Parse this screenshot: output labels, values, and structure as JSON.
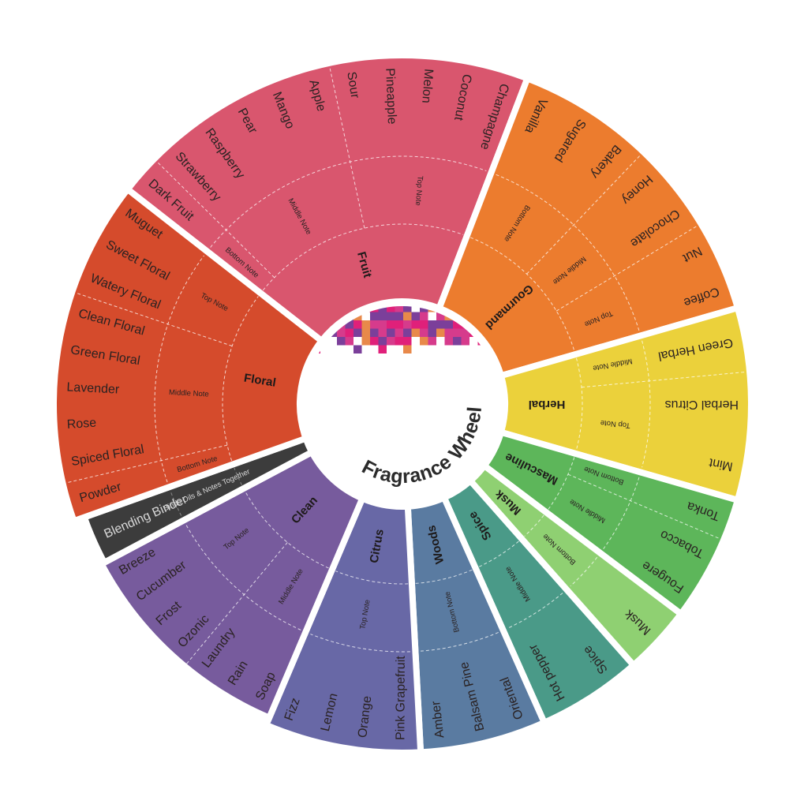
{
  "title": "Fragrance Wheel",
  "logo_colors": [
    "#e0207a",
    "#7b3f9a",
    "#e8894a",
    "#d63b8c"
  ],
  "categories": [
    {
      "name": "Fruit",
      "color": "#d9566e",
      "start": 308,
      "end": 381,
      "notes": [
        {
          "label": "Bottom Note",
          "items": [
            "Dark Fruit"
          ]
        },
        {
          "label": "Middle Note",
          "items": [
            "Strawberry",
            "Raspberry",
            "Pear",
            "Mango",
            "Apple"
          ]
        },
        {
          "label": "Top Note",
          "items": [
            "Sour",
            "Pineapple",
            "Melon",
            "Coconut",
            "Champagne"
          ]
        }
      ]
    },
    {
      "name": "Gourmand",
      "color": "#ec7c2e",
      "start": 21,
      "end": 74,
      "notes": [
        {
          "label": "Bottom Note",
          "items": [
            "Vanilla",
            "Sugared",
            "Bakery"
          ]
        },
        {
          "label": "Middle Note",
          "items": [
            "Honey",
            "Chocolate"
          ]
        },
        {
          "label": "Top Note",
          "items": [
            "Nut",
            "Coffee"
          ]
        }
      ]
    },
    {
      "name": "Herbal",
      "color": "#ebd13b",
      "start": 74,
      "end": 106,
      "notes": [
        {
          "label": "Middle Note",
          "items": [
            "Green Herbal"
          ]
        },
        {
          "label": "Top Note",
          "items": [
            "Herbal Citrus",
            "Mint"
          ]
        }
      ]
    },
    {
      "name": "Masculine",
      "color": "#5db65a",
      "start": 106,
      "end": 127,
      "notes": [
        {
          "label": "Bottom Note",
          "items": [
            "Tonka"
          ]
        },
        {
          "label": "Middle Note",
          "items": [
            "Tobacco",
            "Fougere"
          ]
        }
      ]
    },
    {
      "name": "Musk",
      "color": "#8fd072",
      "start": 127,
      "end": 138.5,
      "notes": [
        {
          "label": "Bottom Note",
          "items": [
            "Musk"
          ]
        }
      ]
    },
    {
      "name": "Spice",
      "color": "#4a9a88",
      "start": 138.5,
      "end": 156,
      "notes": [
        {
          "label": "Middle Note",
          "items": [
            "Spice",
            "Hot pepper"
          ]
        }
      ]
    },
    {
      "name": "Woods",
      "color": "#5a7ba1",
      "start": 156,
      "end": 177,
      "notes": [
        {
          "label": "Bottom Note",
          "items": [
            "Oriental",
            "Balsam Pine",
            "Amber"
          ]
        }
      ]
    },
    {
      "name": "Citrus",
      "color": "#6868a6",
      "start": 177,
      "end": 203,
      "notes": [
        {
          "label": "Top Note",
          "items": [
            "Pink Grapefruit",
            "Orange",
            "Lemon",
            "Fizz"
          ]
        }
      ]
    },
    {
      "name": "Clean",
      "color": "#775b9d",
      "start": 203,
      "end": 242,
      "notes": [
        {
          "label": "Middle Note",
          "items": [
            "Soap",
            "Rain",
            "Laundry"
          ]
        },
        {
          "label": "Top Note",
          "items": [
            "Ozonic",
            "Frost",
            "Cucumber",
            "Breeze"
          ]
        }
      ]
    },
    {
      "name": "",
      "color": "#3c3c3c",
      "start": 242,
      "end": 250.4,
      "light": true,
      "notes": [
        {
          "label": "Binds Oils & Notes Together",
          "items": [
            "Blending Binder"
          ]
        }
      ]
    },
    {
      "name": "Floral",
      "color": "#d54b2c",
      "start": 250.4,
      "end": 308,
      "notes": [
        {
          "label": "Bottom Note",
          "items": [
            "Powder"
          ]
        },
        {
          "label": "Middle Note",
          "items": [
            "Spiced Floral",
            "Rose",
            "Lavender",
            "Green Floral",
            "Clean Floral"
          ]
        },
        {
          "label": "Top Note",
          "items": [
            "Watery Floral",
            "Sweet Floral",
            "Muguet"
          ]
        }
      ]
    }
  ]
}
